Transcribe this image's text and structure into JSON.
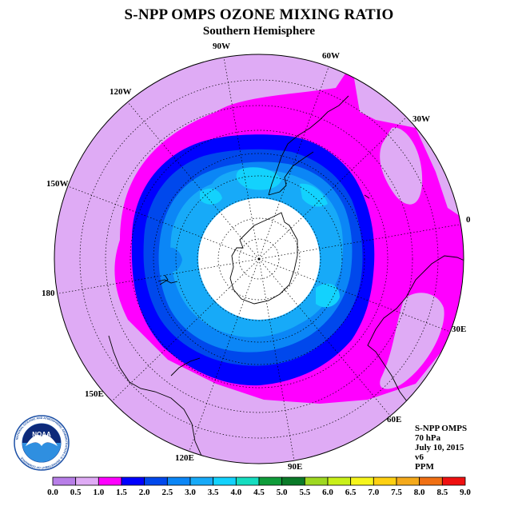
{
  "title": "S-NPP OMPS OZONE MIXING RATIO",
  "subtitle": "Southern Hemisphere",
  "longitude_labels": {
    "lon_90w": "90W",
    "lon_60w": "60W",
    "lon_30w": "30W",
    "lon_0": "0",
    "lon_30e": "30E",
    "lon_60e": "60E",
    "lon_90e": "90E",
    "lon_120e": "120E",
    "lon_150e": "150E",
    "lon_180": "180",
    "lon_150w": "150W",
    "lon_120w": "120W"
  },
  "info": {
    "instrument": "S-NPP OMPS",
    "pressure_level": "70 hPa",
    "date": "July 10, 2015",
    "version": "v6",
    "units": "PPM"
  },
  "logo": {
    "name": "NOAA",
    "text": "NATIONAL OCEANIC AND ATMOSPHERIC ADMINISTRATION U.S. DEPARTMENT OF COMMERCE"
  },
  "colorbar": {
    "ticks": [
      "0.0",
      "0.5",
      "1.0",
      "1.5",
      "2.0",
      "2.5",
      "3.0",
      "3.5",
      "4.0",
      "4.5",
      "5.0",
      "5.5",
      "6.0",
      "6.5",
      "7.0",
      "7.5",
      "8.0",
      "8.5",
      "9.0"
    ],
    "colors": [
      "#b87ee8",
      "#dfabf5",
      "#ff00ff",
      "#0000ff",
      "#0048ec",
      "#0b86f6",
      "#17aaf8",
      "#13d2fd",
      "#15ddc0",
      "#0f9c3a",
      "#0a7a28",
      "#9ed821",
      "#c9f019",
      "#f6f51c",
      "#fed012",
      "#f4a91b",
      "#f07014",
      "#ef1010",
      "#8d5a44"
    ]
  },
  "map_colors": {
    "band_0_5_1_0": "#dfabf5",
    "band_1_0_1_5": "#ff00ff",
    "band_1_5_2_0": "#0000ff",
    "band_2_0_2_5": "#0048ec",
    "band_2_5_3_0": "#0b86f6",
    "band_3_0_3_5": "#17aaf8",
    "band_3_5_4_0": "#13d2fd",
    "no_data": "#ffffff"
  }
}
